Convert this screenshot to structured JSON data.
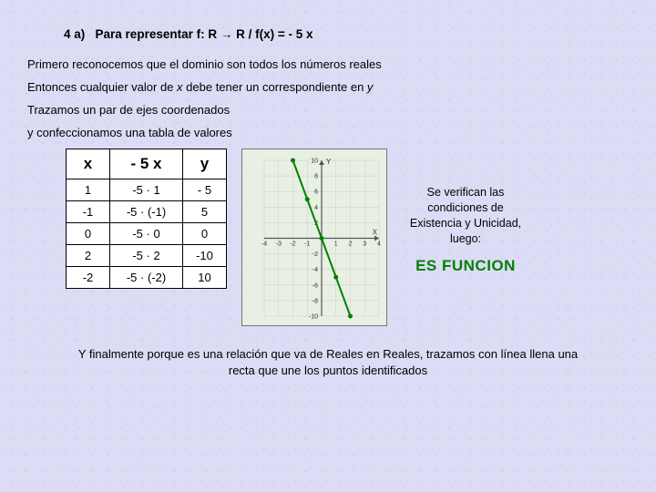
{
  "heading_label": "4 a)",
  "heading_text": "Para representar f: R → R / f(x) = - 5 x",
  "p1": "Primero reconocemos que el dominio son todos los números reales",
  "p2_a": "Entonces cualquier valor de ",
  "p2_x": "x",
  "p2_b": " debe tener un correspondiente en ",
  "p2_y": "y",
  "p3": "Trazamos un par de ejes coordenados",
  "p4": "y confeccionamos una tabla de valores",
  "table": {
    "headers": [
      "x",
      "- 5 x",
      "y"
    ],
    "rows": [
      [
        "1",
        "-5 · 1",
        "- 5"
      ],
      [
        "-1",
        "-5 · (-1)",
        "5"
      ],
      [
        "0",
        "-5 · 0",
        "0"
      ],
      [
        "2",
        "-5 · 2",
        "-10"
      ],
      [
        "-2",
        "-5 · (-2)",
        "10"
      ]
    ]
  },
  "chart": {
    "xlim": [
      -4,
      4
    ],
    "ylim": [
      -10,
      10
    ],
    "xticks": [
      -4,
      -3,
      -2,
      -1,
      1,
      2,
      3,
      4
    ],
    "yticks": [
      -10,
      -8,
      -6,
      -4,
      -2,
      2,
      4,
      6,
      8,
      10
    ],
    "line_color": "#008000",
    "axis_color": "#555555",
    "grid_color": "#c8d0c4",
    "bg_color": "#e8efe3",
    "tick_font_px": 7,
    "axis_labels": {
      "x": "X",
      "y": "Y"
    },
    "points": [
      {
        "x": 1,
        "y": -5
      },
      {
        "x": -1,
        "y": 5
      },
      {
        "x": 0,
        "y": 0
      },
      {
        "x": 2,
        "y": -10
      },
      {
        "x": -2,
        "y": 10
      }
    ],
    "segment": [
      [
        -2,
        10
      ],
      [
        2,
        -10
      ]
    ]
  },
  "side1": "Se verifican las condiciones de Existencia y Unicidad, luego:",
  "side2": "ES FUNCION",
  "footer": "Y finalmente porque es una relación que va de Reales en Reales, trazamos con línea llena una recta que une los puntos identificados"
}
